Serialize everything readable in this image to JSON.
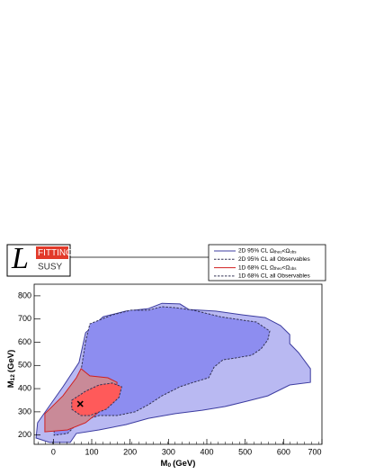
{
  "chart_data": {
    "type": "contour",
    "logo": {
      "letter": "L",
      "top": "FITTINO",
      "bottom": "SUSY"
    },
    "x_label": {
      "main": "M",
      "sub": "0",
      "unit": "(GeV)"
    },
    "y_label": {
      "main": "M",
      "sub": "12",
      "unit": "(GeV)"
    },
    "xlim": [
      -50,
      700
    ],
    "ylim": [
      160,
      850
    ],
    "xticks": [
      0,
      100,
      200,
      300,
      400,
      500,
      600,
      700
    ],
    "yticks": [
      200,
      300,
      400,
      500,
      600,
      700,
      800
    ],
    "series": [
      {
        "name": "2D 95% CL",
        "condition": [
          "Ω",
          "theo",
          "<Ω",
          "obs"
        ],
        "color": "#b9b9f2",
        "line_color": "#3c3ca0",
        "line_style": "solid",
        "x": [
          -45,
          -41,
          25,
          67,
          84,
          130,
          189,
          248,
          283,
          330,
          353,
          423,
          494,
          552,
          592,
          616,
          616,
          639,
          670,
          670,
          616,
          559,
          505,
          447,
          388,
          318,
          248,
          189,
          119,
          60,
          44,
          -10
        ],
        "y": [
          187,
          253,
          408,
          513,
          641,
          710,
          734,
          745,
          768,
          765,
          741,
          734,
          718,
          706,
          672,
          633,
          594,
          555,
          486,
          427,
          416,
          369,
          346,
          323,
          307,
          292,
          272,
          245,
          222,
          207,
          168,
          168
        ]
      },
      {
        "name": "2D 95% CL",
        "condition": "all Observables",
        "color": "#8d8df0",
        "line_color": "#333355",
        "line_style": "dashed",
        "x": [
          84,
          95,
          119,
          154,
          201,
          248,
          283,
          318,
          365,
          435,
          494,
          529,
          564,
          559,
          541,
          517,
          475,
          442,
          419,
          405,
          365,
          330,
          283,
          248,
          213,
          166,
          119,
          95,
          60,
          37,
          2,
          2,
          48,
          72
        ],
        "y": [
          602,
          679,
          695,
          718,
          738,
          738,
          753,
          749,
          738,
          710,
          695,
          687,
          648,
          610,
          571,
          544,
          532,
          524,
          493,
          447,
          427,
          408,
          369,
          331,
          300,
          284,
          284,
          272,
          245,
          207,
          199,
          253,
          369,
          478
        ]
      },
      {
        "name": "1D 68% CL",
        "condition": [
          "Ω",
          "theo",
          "<Ω",
          "obs"
        ],
        "color": "#c98a98",
        "line_color": "#d02020",
        "line_style": "solid",
        "x": [
          -22,
          -22,
          25,
          60,
          72,
          95,
          142,
          166,
          161,
          119,
          84,
          37
        ],
        "y": [
          214,
          292,
          369,
          447,
          486,
          455,
          447,
          427,
          369,
          300,
          253,
          222
        ]
      },
      {
        "name": "1D 68% CL",
        "condition": "all Observables",
        "color": "#ff5a5a",
        "line_color": "#333355",
        "line_style": "dashed",
        "x": [
          48,
          84,
          119,
          154,
          178,
          171,
          138,
          95,
          72,
          48
        ],
        "y": [
          350,
          389,
          416,
          424,
          408,
          362,
          311,
          284,
          284,
          311
        ]
      }
    ],
    "best_fit": {
      "x": 70,
      "y": 334
    }
  }
}
